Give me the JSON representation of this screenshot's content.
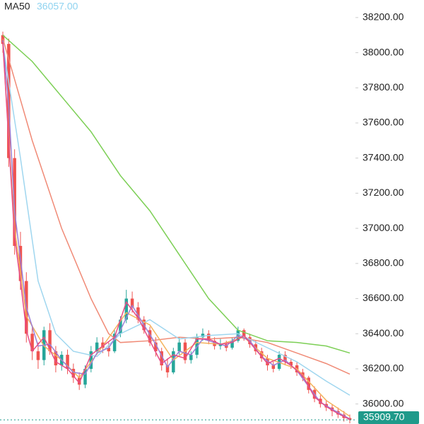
{
  "chart_data": {
    "type": "candlestick",
    "indicator_label": "MA50",
    "indicator_value": "36057.00",
    "x": [
      0,
      1,
      2,
      3,
      4,
      5,
      6,
      7,
      8,
      9,
      10,
      11,
      12,
      13,
      14,
      15,
      16,
      17,
      18,
      19,
      20,
      21,
      22,
      23,
      24,
      25,
      26,
      27,
      28,
      29,
      30,
      31,
      32,
      33,
      34,
      35,
      36,
      37,
      38,
      39,
      40,
      41,
      42,
      43,
      44,
      45,
      46,
      47,
      48,
      49,
      50,
      51,
      52,
      53,
      54,
      55,
      56,
      57,
      58,
      59
    ],
    "open": [
      38100,
      38050,
      37400,
      36900,
      36700,
      36400,
      36300,
      36250,
      36420,
      36300,
      36220,
      36280,
      36200,
      36150,
      36110,
      36200,
      36300,
      36350,
      36320,
      36300,
      36400,
      36480,
      36600,
      36550,
      36480,
      36420,
      36350,
      36300,
      36220,
      36180,
      36300,
      36350,
      36250,
      36280,
      36380,
      36400,
      36360,
      36330,
      36340,
      36320,
      36360,
      36420,
      36380,
      36340,
      36300,
      36260,
      36220,
      36200,
      36280,
      36240,
      36220,
      36180,
      36150,
      36080,
      36030,
      36000,
      35980,
      35960,
      35940,
      35920
    ],
    "high": [
      38120,
      38080,
      37450,
      36980,
      36750,
      36450,
      36350,
      36440,
      36460,
      36330,
      36300,
      36310,
      36230,
      36180,
      36220,
      36330,
      36380,
      36380,
      36350,
      36420,
      36500,
      36650,
      36640,
      36580,
      36500,
      36440,
      36380,
      36320,
      36260,
      36320,
      36380,
      36370,
      36300,
      36400,
      36430,
      36420,
      36380,
      36370,
      36360,
      36380,
      36440,
      36430,
      36400,
      36360,
      36320,
      36280,
      36240,
      36300,
      36300,
      36260,
      36240,
      36200,
      36160,
      36100,
      36050,
      36020,
      36000,
      35980,
      35960,
      35940
    ],
    "low": [
      38000,
      37350,
      36850,
      36650,
      36350,
      36250,
      36200,
      36220,
      36280,
      36180,
      36190,
      36170,
      36120,
      36080,
      36090,
      36180,
      36280,
      36290,
      36270,
      36290,
      36380,
      36460,
      36520,
      36460,
      36400,
      36330,
      36270,
      36190,
      36150,
      36170,
      36280,
      36230,
      36230,
      36260,
      36360,
      36340,
      36310,
      36310,
      36300,
      36310,
      36350,
      36360,
      36320,
      36280,
      36240,
      36190,
      36180,
      36190,
      36220,
      36200,
      36160,
      36130,
      36060,
      36010,
      35980,
      35960,
      35930,
      35920,
      35900,
      35890
    ],
    "close": [
      38050,
      37400,
      36900,
      36700,
      36400,
      36300,
      36250,
      36420,
      36300,
      36220,
      36280,
      36200,
      36150,
      36110,
      36200,
      36300,
      36350,
      36320,
      36300,
      36400,
      36480,
      36600,
      36550,
      36480,
      36420,
      36350,
      36300,
      36220,
      36180,
      36300,
      36350,
      36250,
      36280,
      36380,
      36400,
      36360,
      36330,
      36340,
      36320,
      36360,
      36420,
      36380,
      36340,
      36300,
      36260,
      36220,
      36200,
      36280,
      36240,
      36220,
      36180,
      36150,
      36080,
      36030,
      36000,
      35980,
      35960,
      35940,
      35920,
      35909.7
    ],
    "up_color": "#26a69a",
    "down_color": "#ef5350",
    "series": [
      {
        "color": "#7ccf55",
        "x": [
          0,
          5,
          10,
          15,
          20,
          25,
          30,
          35,
          40,
          45,
          50,
          55,
          59
        ],
        "values": [
          38100,
          37950,
          37750,
          37550,
          37300,
          37100,
          36850,
          36600,
          36420,
          36360,
          36350,
          36330,
          36290
        ]
      },
      {
        "color": "#f08a76",
        "x": [
          0,
          5,
          10,
          15,
          18,
          20,
          25,
          30,
          35,
          40,
          45,
          50,
          55,
          59
        ],
        "values": [
          38080,
          37500,
          37000,
          36600,
          36400,
          36350,
          36360,
          36380,
          36370,
          36380,
          36350,
          36290,
          36230,
          36170
        ]
      },
      {
        "color": "#9fd6ef",
        "x": [
          0,
          3,
          6,
          9,
          12,
          16,
          20,
          25,
          30,
          35,
          40,
          45,
          50,
          55,
          59
        ],
        "values": [
          38050,
          37400,
          36700,
          36400,
          36300,
          36270,
          36400,
          36480,
          36370,
          36390,
          36400,
          36320,
          36240,
          36130,
          36050
        ]
      },
      {
        "color": "#f4b35c",
        "x": [
          0,
          2,
          4,
          7,
          10,
          13,
          17,
          21,
          25,
          29,
          33,
          37,
          41,
          45,
          50,
          55,
          59
        ],
        "values": [
          38050,
          37000,
          36500,
          36330,
          36250,
          36150,
          36330,
          36520,
          36450,
          36250,
          36350,
          36340,
          36380,
          36260,
          36200,
          36020,
          35930
        ]
      },
      {
        "color": "#9b7fd6",
        "x": [
          0,
          1,
          2,
          4,
          6,
          8,
          10,
          12,
          14,
          16,
          18,
          20,
          22,
          24,
          26,
          28,
          30,
          32,
          34,
          36,
          38,
          40,
          42,
          44,
          46,
          48,
          50,
          52,
          54,
          56,
          59
        ],
        "values": [
          38070,
          37700,
          37100,
          36550,
          36330,
          36340,
          36250,
          36180,
          36170,
          36290,
          36320,
          36420,
          36560,
          36450,
          36340,
          36210,
          36300,
          36280,
          36370,
          36350,
          36330,
          36390,
          36360,
          36270,
          36220,
          36250,
          36190,
          36100,
          36010,
          35970,
          35915
        ]
      },
      {
        "color": "#e64b86",
        "x": [
          0,
          1,
          2,
          3,
          4,
          5,
          7,
          9,
          11,
          13,
          15,
          17,
          19,
          21,
          23,
          25,
          27,
          29,
          31,
          33,
          35,
          37,
          39,
          41,
          43,
          45,
          47,
          49,
          51,
          53,
          55,
          57,
          59
        ],
        "values": [
          38060,
          37500,
          36950,
          36700,
          36420,
          36300,
          36380,
          36240,
          36200,
          36120,
          36280,
          36330,
          36380,
          36580,
          36490,
          36360,
          36230,
          36280,
          36260,
          36370,
          36370,
          36340,
          36350,
          36390,
          36310,
          36230,
          36260,
          36220,
          36160,
          36040,
          35985,
          35945,
          35912
        ]
      }
    ],
    "xlim": [
      0,
      59
    ],
    "ylim": [
      35886,
      38300
    ],
    "yticks": [
      {
        "value": 36000,
        "label": "36000.00"
      },
      {
        "value": 36200,
        "label": "36200.00"
      },
      {
        "value": 36400,
        "label": "36400.00"
      },
      {
        "value": 36600,
        "label": "36600.00"
      },
      {
        "value": 36800,
        "label": "36800.00"
      },
      {
        "value": 37000,
        "label": "37000.00"
      },
      {
        "value": 37200,
        "label": "37200.00"
      },
      {
        "value": 37400,
        "label": "37400.00"
      },
      {
        "value": 37600,
        "label": "37600.00"
      },
      {
        "value": 37800,
        "label": "37800.00"
      },
      {
        "value": 38000,
        "label": "38000.00"
      },
      {
        "value": 38200,
        "label": "38200.00"
      }
    ],
    "last_price": 35909.7,
    "last_price_label": "35909.70",
    "last_price_color": "#1f9a8a"
  }
}
